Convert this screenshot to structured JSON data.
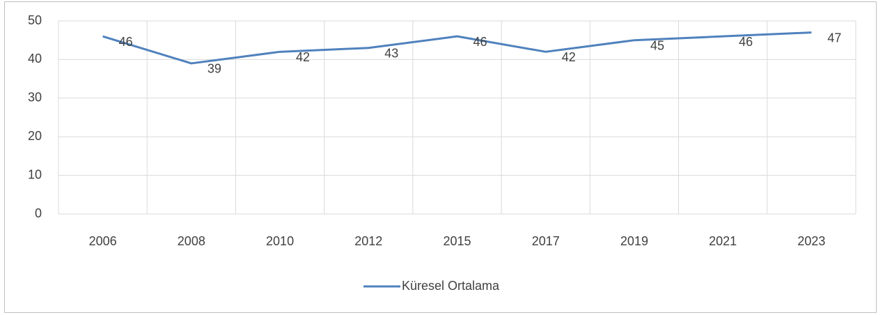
{
  "chart_data": {
    "type": "line",
    "categories": [
      "2006",
      "2008",
      "2010",
      "2012",
      "2015",
      "2017",
      "2019",
      "2021",
      "2023"
    ],
    "series": [
      {
        "name": "Küresel Ortalama",
        "color": "#4f81bd",
        "values": [
          46,
          39,
          42,
          43,
          46,
          42,
          45,
          46,
          47
        ]
      }
    ],
    "ylim": [
      0,
      50
    ],
    "yticks": [
      0,
      10,
      20,
      30,
      40,
      50
    ],
    "grid": true,
    "legend": "bottom"
  }
}
